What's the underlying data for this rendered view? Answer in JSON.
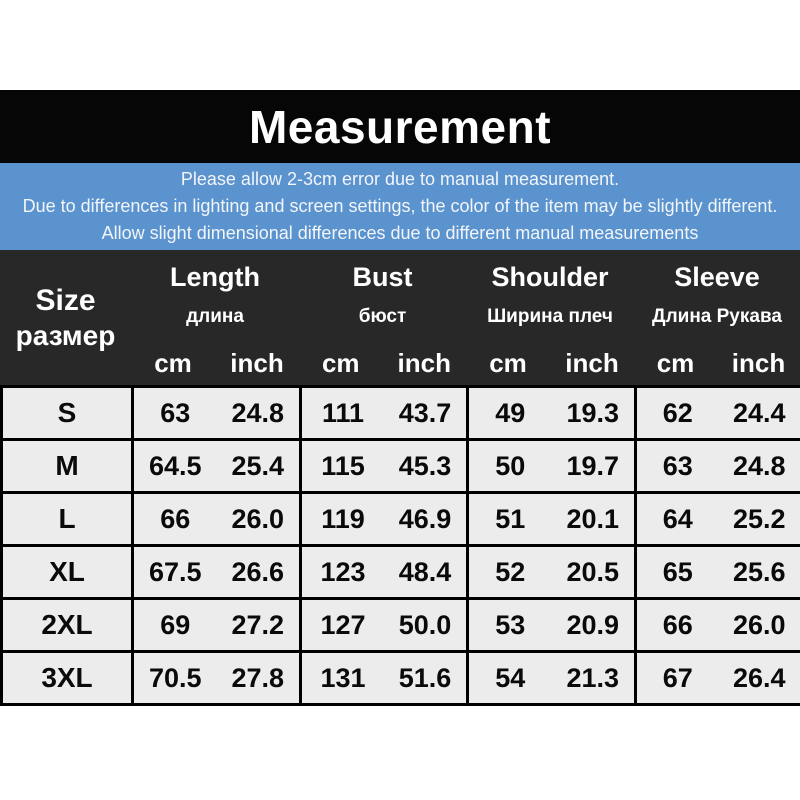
{
  "title_band": {
    "text": "Measurement"
  },
  "notice": {
    "lines": [
      "Please allow 2-3cm error due to manual measurement.",
      "Due to differences in lighting and screen settings, the color of the item may be slightly different.",
      "Allow slight dimensional differences due to different manual measurements"
    ]
  },
  "chart_data": {
    "type": "table",
    "title": "Measurement",
    "size_column": {
      "en": "Size",
      "ru": "размер"
    },
    "groups": [
      {
        "en": "Length",
        "ru": "длина"
      },
      {
        "en": "Bust",
        "ru": "бюст"
      },
      {
        "en": "Shoulder",
        "ru": "Ширина плеч"
      },
      {
        "en": "Sleeve",
        "ru": "Длина Рукава"
      }
    ],
    "units": [
      "cm",
      "inch"
    ],
    "rows": [
      {
        "size": "S",
        "values": [
          "63",
          "24.8",
          "111",
          "43.7",
          "49",
          "19.3",
          "62",
          "24.4"
        ]
      },
      {
        "size": "M",
        "values": [
          "64.5",
          "25.4",
          "115",
          "45.3",
          "50",
          "19.7",
          "63",
          "24.8"
        ]
      },
      {
        "size": "L",
        "values": [
          "66",
          "26.0",
          "119",
          "46.9",
          "51",
          "20.1",
          "64",
          "25.2"
        ]
      },
      {
        "size": "XL",
        "values": [
          "67.5",
          "26.6",
          "123",
          "48.4",
          "52",
          "20.5",
          "65",
          "25.6"
        ]
      },
      {
        "size": "2XL",
        "values": [
          "69",
          "27.2",
          "127",
          "50.0",
          "53",
          "20.9",
          "66",
          "26.0"
        ]
      },
      {
        "size": "3XL",
        "values": [
          "70.5",
          "27.8",
          "131",
          "51.6",
          "54",
          "21.3",
          "67",
          "26.4"
        ]
      }
    ]
  },
  "colors": {
    "title_band_bg": "#060606",
    "notice_bg": "#5b93ce",
    "header_bg": "#282828",
    "row_bg": "#ececec",
    "border_color": "#000000",
    "text_light": "#ffffff",
    "text_dark": "#0a0a0a"
  }
}
